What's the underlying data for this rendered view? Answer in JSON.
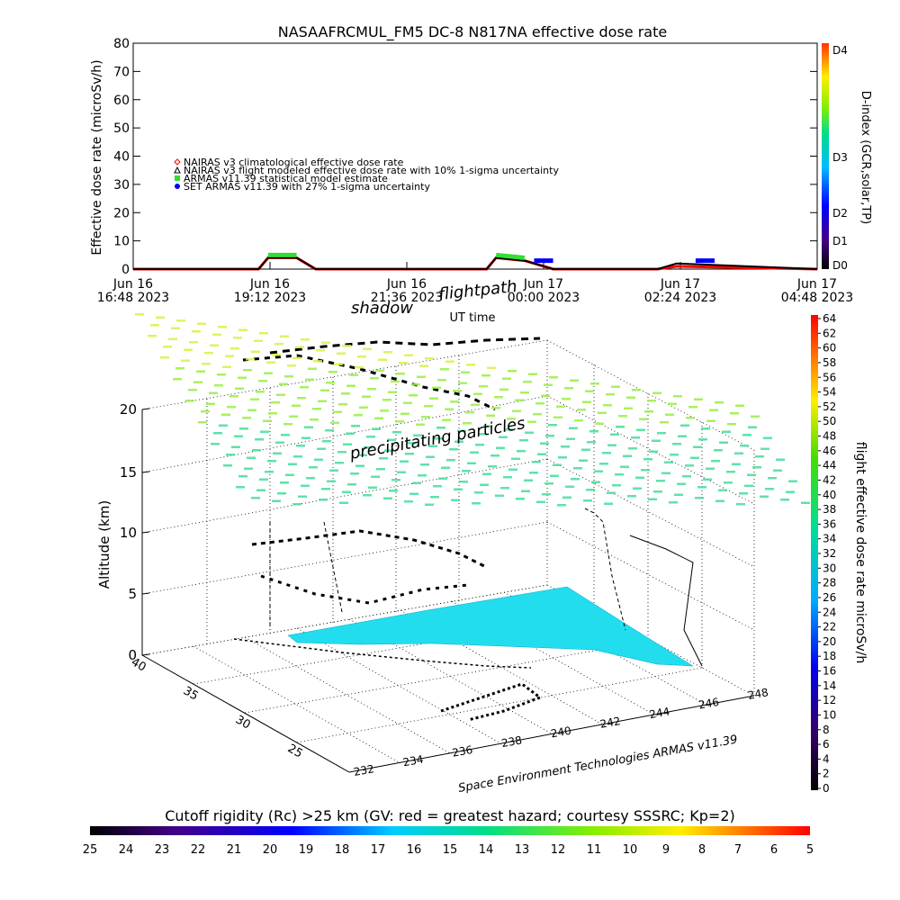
{
  "top_chart": {
    "title": "NASAAFRCMUL_FM5 DC-8   N817NA effective dose rate",
    "ylabel": "Effective dose rate (microSv/h)",
    "xlabel": "UT time",
    "y_ticks": [
      "0",
      "10",
      "20",
      "30",
      "40",
      "50",
      "60",
      "70",
      "80"
    ],
    "x_ticks": [
      {
        "line1": "Jun 16",
        "line2": "16:48 2023"
      },
      {
        "line1": "Jun 16",
        "line2": "19:12 2023"
      },
      {
        "line1": "Jun 16",
        "line2": "21:36 2023"
      },
      {
        "line1": "Jun 17",
        "line2": "00:00 2023"
      },
      {
        "line1": "Jun 17",
        "line2": "02:24 2023"
      },
      {
        "line1": "Jun 17",
        "line2": "04:48 2023"
      }
    ],
    "legend": [
      {
        "label": "NAIRAS v3 climatological effective dose rate",
        "color": "#ff0000",
        "marker": "diamond"
      },
      {
        "label": "NAIRAS v3 flight modeled effective dose rate with 10% 1-sigma uncertainty",
        "color": "#000000",
        "marker": "triangle"
      },
      {
        "label": "ARMAS v11.39 statistical model estimate",
        "color": "#33dd33",
        "marker": "square"
      },
      {
        "label": "SET ARMAS v11.39 with 27% 1-sigma uncertainty",
        "color": "#0000ff",
        "marker": "circle"
      }
    ],
    "dindex_label": "D-index (GCR,solar,TP)",
    "dindex_ticks": [
      "D0",
      "D1",
      "D2",
      "D3",
      "D4"
    ]
  },
  "globe": {
    "annotations": {
      "shadow": "shadow",
      "flightpath": "flightpath",
      "precip": "precipitating particles"
    },
    "zlabel": "Altitude (km)",
    "z_ticks": [
      "0",
      "5",
      "10",
      "15",
      "20"
    ],
    "lat_ticks": [
      "40",
      "35",
      "30",
      "25"
    ],
    "lon_ticks": [
      "232",
      "234",
      "236",
      "238",
      "240",
      "242",
      "244",
      "246",
      "248"
    ],
    "credit": "Space Environment Technologies ARMAS v11.39"
  },
  "right_colorbar": {
    "label": "flight effective dose rate microSv/h",
    "ticks": [
      "0",
      "2",
      "4",
      "6",
      "8",
      "10",
      "12",
      "14",
      "16",
      "18",
      "20",
      "22",
      "24",
      "26",
      "28",
      "30",
      "32",
      "34",
      "36",
      "38",
      "40",
      "42",
      "44",
      "46",
      "48",
      "50",
      "52",
      "54",
      "56",
      "58",
      "60",
      "62",
      "64"
    ]
  },
  "bottom_colorbar": {
    "title": "Cutoff rigidity (Rc) >25 km (GV: red = greatest hazard; courtesy SSSRC; Kp=2)",
    "ticks": [
      "25",
      "24",
      "23",
      "22",
      "21",
      "20",
      "19",
      "18",
      "17",
      "16",
      "15",
      "14",
      "13",
      "12",
      "11",
      "10",
      "9",
      "8",
      "7",
      "6",
      "5"
    ]
  },
  "chart_data": {
    "type": "line",
    "title": "NASAAFRCMUL_FM5 DC-8   N817NA effective dose rate",
    "xlabel": "UT time",
    "ylabel": "Effective dose rate (microSv/h)",
    "ylim": [
      0,
      80
    ],
    "xlim": [
      "2023-06-16 16:48",
      "2023-06-17 04:48"
    ],
    "legend_position": "upper-left",
    "series": [
      {
        "name": "NAIRAS v3 climatological effective dose rate",
        "color": "#ff0000",
        "x": [
          "2023-06-16 16:48",
          "2023-06-16 19:00",
          "2023-06-16 19:10",
          "2023-06-16 19:40",
          "2023-06-16 20:00",
          "2023-06-16 23:00",
          "2023-06-16 23:10",
          "2023-06-16 23:40",
          "2023-06-17 00:10",
          "2023-06-17 02:00",
          "2023-06-17 02:20",
          "2023-06-17 04:48"
        ],
        "y": [
          0,
          0,
          4,
          4,
          0,
          0,
          4,
          3,
          0,
          0,
          1,
          0
        ]
      },
      {
        "name": "NAIRAS v3 flight modeled effective dose rate with 10% 1-sigma uncertainty",
        "color": "#000000",
        "x": [
          "2023-06-16 16:48",
          "2023-06-16 19:00",
          "2023-06-16 19:10",
          "2023-06-16 19:40",
          "2023-06-16 20:00",
          "2023-06-16 23:00",
          "2023-06-16 23:10",
          "2023-06-16 23:40",
          "2023-06-17 00:10",
          "2023-06-17 02:00",
          "2023-06-17 02:20",
          "2023-06-17 04:48"
        ],
        "y": [
          0,
          0,
          4,
          4,
          0,
          0,
          4,
          3,
          0,
          0,
          2,
          0
        ]
      },
      {
        "name": "ARMAS v11.39 statistical model estimate",
        "color": "#33dd33",
        "x": [
          "2023-06-16 19:10",
          "2023-06-16 19:40",
          "2023-06-16 23:10",
          "2023-06-16 23:40"
        ],
        "y": [
          5,
          5,
          5,
          4
        ]
      },
      {
        "name": "SET ARMAS v11.39 with 27% 1-sigma uncertainty",
        "color": "#0000ff",
        "x": [
          "2023-06-16 23:50",
          "2023-06-17 00:10",
          "2023-06-17 02:40",
          "2023-06-17 03:00"
        ],
        "y": [
          3,
          3,
          3,
          3
        ]
      }
    ]
  }
}
